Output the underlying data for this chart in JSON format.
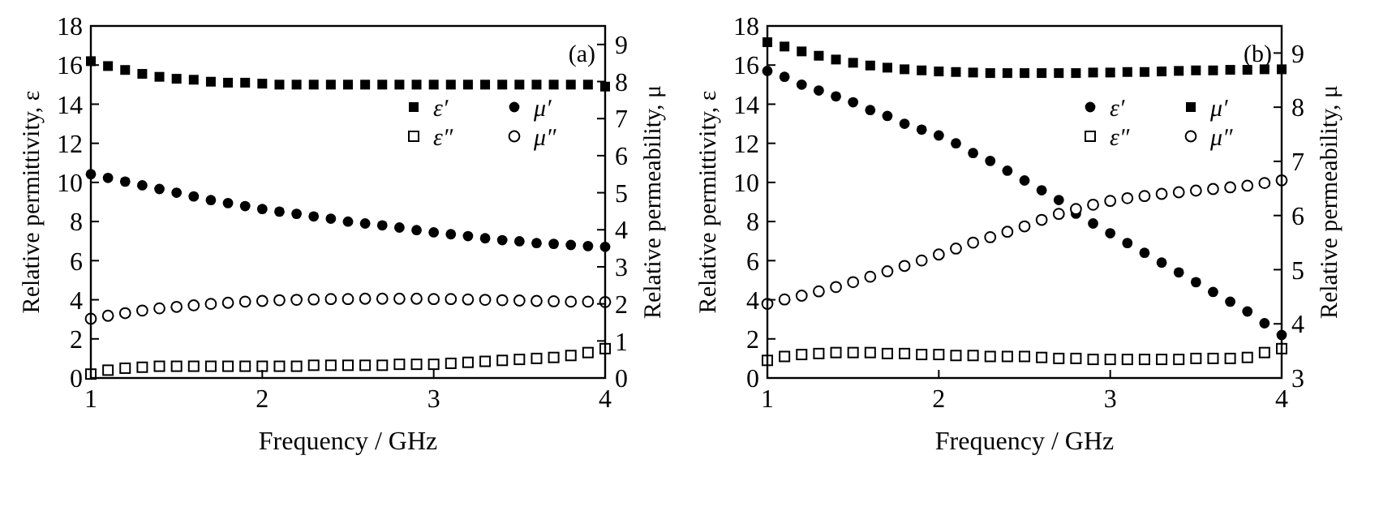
{
  "chart_data": [
    {
      "type": "scatter",
      "xlabel": "Frequency / GHz",
      "ylabel": "Relative permittivity, ε",
      "y2label": "Relative permeability, μ",
      "annotations": [
        "(a)"
      ],
      "legend": "top right",
      "xlim": [
        1,
        4
      ],
      "xticks": [
        1,
        2,
        3,
        4
      ],
      "ylim": [
        0,
        18
      ],
      "yticks": [
        0,
        2,
        4,
        6,
        8,
        10,
        12,
        14,
        16,
        18
      ],
      "y2lim": [
        0,
        9.5
      ],
      "y2ticks": [
        0,
        1,
        2,
        3,
        4,
        5,
        6,
        7,
        8,
        9
      ],
      "x": [
        1.0,
        1.1,
        1.2,
        1.3,
        1.4,
        1.5,
        1.6,
        1.7,
        1.8,
        1.9,
        2.0,
        2.1,
        2.2,
        2.3,
        2.4,
        2.5,
        2.6,
        2.7,
        2.8,
        2.9,
        3.0,
        3.1,
        3.2,
        3.3,
        3.4,
        3.5,
        3.6,
        3.7,
        3.8,
        3.9,
        4.0
      ],
      "series": [
        {
          "name": "ε′",
          "color": "#000000",
          "marker": "square",
          "values": [
            16.2,
            15.95,
            15.75,
            15.55,
            15.4,
            15.3,
            15.25,
            15.15,
            15.1,
            15.1,
            15.05,
            15.0,
            15.0,
            15.0,
            15.0,
            15.0,
            15.0,
            15.0,
            15.0,
            15.0,
            15.0,
            15.0,
            15.0,
            15.0,
            15.0,
            15.0,
            15.0,
            15.0,
            15.0,
            15.0,
            14.9
          ]
        },
        {
          "name": "ε″",
          "color": "#000000",
          "marker": "square",
          "values": [
            0.2,
            0.4,
            0.5,
            0.55,
            0.6,
            0.6,
            0.6,
            0.6,
            0.6,
            0.6,
            0.6,
            0.6,
            0.6,
            0.65,
            0.65,
            0.65,
            0.65,
            0.65,
            0.7,
            0.7,
            0.7,
            0.75,
            0.8,
            0.85,
            0.9,
            0.95,
            1.0,
            1.05,
            1.15,
            1.3,
            1.5
          ]
        },
        {
          "name": "μ′",
          "color": "#000000",
          "marker": "circle",
          "axis": "y2",
          "values": [
            5.5,
            5.4,
            5.3,
            5.2,
            5.1,
            5.0,
            4.9,
            4.8,
            4.72,
            4.64,
            4.56,
            4.49,
            4.43,
            4.36,
            4.3,
            4.22,
            4.17,
            4.12,
            4.06,
            3.99,
            3.93,
            3.88,
            3.83,
            3.77,
            3.72,
            3.69,
            3.64,
            3.62,
            3.59,
            3.56,
            3.54
          ]
        },
        {
          "name": "μ″",
          "color": "#000000",
          "marker": "circle",
          "axis": "y2",
          "values": [
            1.6,
            1.68,
            1.75,
            1.82,
            1.88,
            1.92,
            1.96,
            2.0,
            2.03,
            2.06,
            2.08,
            2.1,
            2.11,
            2.12,
            2.13,
            2.13,
            2.14,
            2.14,
            2.14,
            2.14,
            2.13,
            2.13,
            2.12,
            2.11,
            2.1,
            2.09,
            2.08,
            2.07,
            2.06,
            2.06,
            2.05
          ]
        }
      ]
    },
    {
      "type": "scatter",
      "xlabel": "Frequency / GHz",
      "ylabel": "Relative permittivity, ε",
      "y2label": "Relative permeability, μ",
      "annotations": [
        "(b)"
      ],
      "legend": "top right",
      "xlim": [
        1,
        4
      ],
      "xticks": [
        1,
        2,
        3,
        4
      ],
      "ylim": [
        0,
        18
      ],
      "yticks": [
        0,
        2,
        4,
        6,
        8,
        10,
        12,
        14,
        16,
        18
      ],
      "y2lim": [
        3,
        9.5
      ],
      "y2ticks": [
        3,
        4,
        5,
        6,
        7,
        8,
        9
      ],
      "x": [
        1.0,
        1.1,
        1.2,
        1.3,
        1.4,
        1.5,
        1.6,
        1.7,
        1.8,
        1.9,
        2.0,
        2.1,
        2.2,
        2.3,
        2.4,
        2.5,
        2.6,
        2.7,
        2.8,
        2.9,
        3.0,
        3.1,
        3.2,
        3.3,
        3.4,
        3.5,
        3.6,
        3.7,
        3.8,
        3.9,
        4.0
      ],
      "series": [
        {
          "name": "ε′",
          "color": "#000000",
          "marker": "circle",
          "values": [
            15.7,
            15.4,
            15.0,
            14.7,
            14.4,
            14.1,
            13.7,
            13.4,
            13.0,
            12.7,
            12.4,
            12.0,
            11.5,
            11.1,
            10.6,
            10.1,
            9.6,
            9.1,
            8.4,
            7.9,
            7.4,
            6.9,
            6.4,
            5.9,
            5.4,
            4.9,
            4.4,
            3.9,
            3.4,
            2.8,
            2.2
          ]
        },
        {
          "name": "ε″",
          "color": "#000000",
          "marker": "square",
          "values": [
            0.9,
            1.1,
            1.2,
            1.25,
            1.3,
            1.3,
            1.3,
            1.25,
            1.25,
            1.2,
            1.2,
            1.15,
            1.15,
            1.1,
            1.1,
            1.1,
            1.05,
            1.0,
            1.0,
            0.95,
            0.95,
            0.95,
            0.95,
            0.95,
            0.95,
            1.0,
            1.0,
            1.0,
            1.05,
            1.3,
            1.5
          ]
        },
        {
          "name": "μ′",
          "color": "#000000",
          "marker": "square",
          "axis": "y2",
          "values": [
            9.2,
            9.12,
            9.03,
            8.95,
            8.88,
            8.82,
            8.77,
            8.73,
            8.7,
            8.68,
            8.66,
            8.65,
            8.64,
            8.63,
            8.63,
            8.63,
            8.63,
            8.63,
            8.63,
            8.64,
            8.64,
            8.65,
            8.65,
            8.66,
            8.67,
            8.68,
            8.68,
            8.69,
            8.69,
            8.7,
            8.7
          ]
        },
        {
          "name": "μ″",
          "color": "#000000",
          "marker": "circle",
          "axis": "y2",
          "values": [
            4.37,
            4.45,
            4.52,
            4.6,
            4.68,
            4.77,
            4.87,
            4.97,
            5.07,
            5.17,
            5.28,
            5.39,
            5.5,
            5.6,
            5.7,
            5.8,
            5.92,
            6.03,
            6.12,
            6.2,
            6.27,
            6.32,
            6.36,
            6.4,
            6.43,
            6.46,
            6.49,
            6.52,
            6.55,
            6.6,
            6.65
          ]
        }
      ]
    }
  ]
}
